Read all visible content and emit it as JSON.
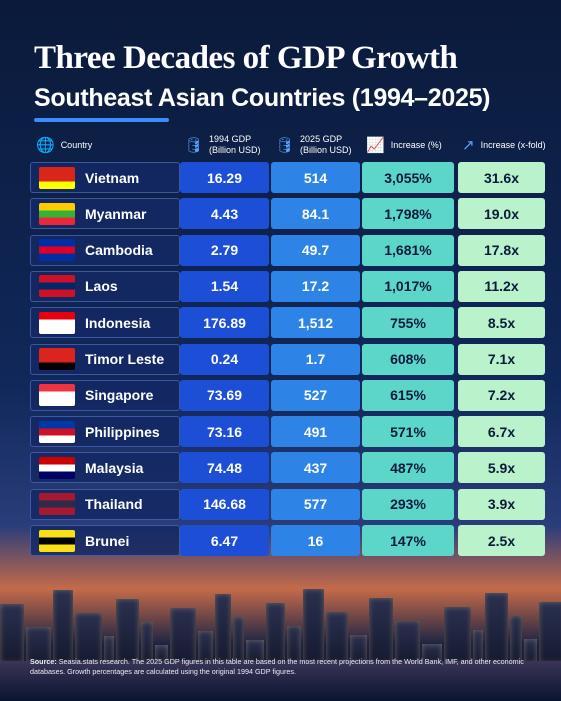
{
  "header": {
    "title": "Three Decades of GDP Growth",
    "subtitle": "Southeast Asian Countries (1994–2025)"
  },
  "table": {
    "columns": [
      {
        "label": "Country"
      },
      {
        "label": "1994 GDP",
        "sub": "(Billion USD)"
      },
      {
        "label": "2025 GDP",
        "sub": "(Billion USD)"
      },
      {
        "label": "Increase (%)"
      },
      {
        "label": "Increase (x-fold)"
      }
    ],
    "rows": [
      [
        "Vietnam",
        "16.29",
        "514",
        "3,055%",
        "31.6x"
      ],
      [
        "Myanmar",
        "4.43",
        "84.1",
        "1,798%",
        "19.0x"
      ],
      [
        "Cambodia",
        "2.79",
        "49.7",
        "1,681%",
        "17.8x"
      ],
      [
        "Laos",
        "1.54",
        "17.2",
        "1,017%",
        "11.2x"
      ],
      [
        "Indonesia",
        "176.89",
        "1,512",
        "755%",
        "8.5x"
      ],
      [
        "Timor Leste",
        "0.24",
        "1.7",
        "608%",
        "7.1x"
      ],
      [
        "Singapore",
        "73.69",
        "527",
        "615%",
        "7.2x"
      ],
      [
        "Philippines",
        "73.16",
        "491",
        "571%",
        "6.7x"
      ],
      [
        "Malaysia",
        "74.48",
        "437",
        "487%",
        "5.9x"
      ],
      [
        "Thailand",
        "146.68",
        "577",
        "293%",
        "3.9x"
      ],
      [
        "Brunei",
        "6.47",
        "16",
        "147%",
        "2.5x"
      ]
    ]
  },
  "footer": {
    "source_label": "Source:",
    "source_text": "Seasia.stats research. The 2025 GDP figures in this table are based on the most recent projections from the World Bank, IMF, and other economic databases. Growth percentages are calculated using the original 1994 GDP figures."
  }
}
